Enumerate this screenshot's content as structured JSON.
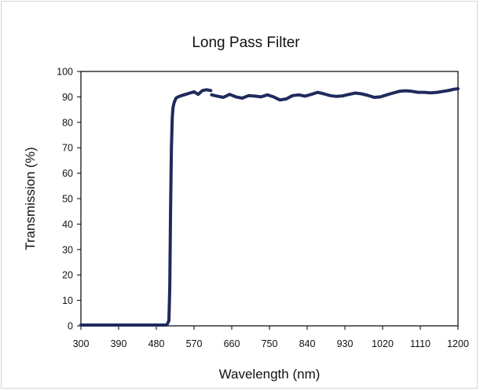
{
  "chart_data": {
    "type": "line",
    "title": "Long Pass Filter",
    "xlabel": "Wavelength (nm)",
    "ylabel": "Transmission (%)",
    "xlim": [
      300,
      1200
    ],
    "ylim": [
      0,
      100
    ],
    "xticks": [
      "300",
      "390",
      "480",
      "570",
      "660",
      "750",
      "840",
      "930",
      "1020",
      "1110",
      "1200"
    ],
    "yticks": [
      "0",
      "10",
      "20",
      "30",
      "40",
      "50",
      "60",
      "70",
      "80",
      "90",
      "100"
    ],
    "grid": false,
    "legend": "none",
    "line_color": "#1f2a5c",
    "series": [
      {
        "segments": [
          {
            "x": [
              300,
              400,
              480,
              505,
              510,
              512,
              514,
              516,
              518,
              520,
              523,
              527,
              532,
              540,
              550,
              560,
              570,
              580,
              590,
              600,
              610
            ],
            "y": [
              0.3,
              0.3,
              0.3,
              0.3,
              2,
              15,
              45,
              70,
              82,
              86,
              88,
              89.5,
              90,
              90.5,
              91,
              91.5,
              92,
              91,
              92.5,
              92.8,
              92.5
            ]
          },
          {
            "x": [
              612,
              625,
              640,
              655,
              670,
              685,
              700,
              715,
              730,
              745,
              760,
              775,
              790,
              805,
              820,
              835,
              850,
              865,
              880,
              895,
              910,
              925,
              940,
              955,
              970,
              985,
              1000,
              1015,
              1030,
              1045,
              1060,
              1075,
              1090,
              1105,
              1120,
              1135,
              1150,
              1165,
              1180,
              1190,
              1200
            ],
            "y": [
              90.8,
              90.3,
              89.8,
              91,
              90,
              89.5,
              90.5,
              90.3,
              90,
              90.8,
              90,
              88.8,
              89.2,
              90.5,
              90.8,
              90.3,
              91,
              91.8,
              91.2,
              90.5,
              90.2,
              90.4,
              91,
              91.5,
              91.2,
              90.6,
              89.8,
              90,
              90.8,
              91.5,
              92.2,
              92.4,
              92.2,
              91.8,
              91.8,
              91.6,
              91.8,
              92.2,
              92.6,
              93,
              93.2
            ]
          }
        ]
      }
    ]
  }
}
